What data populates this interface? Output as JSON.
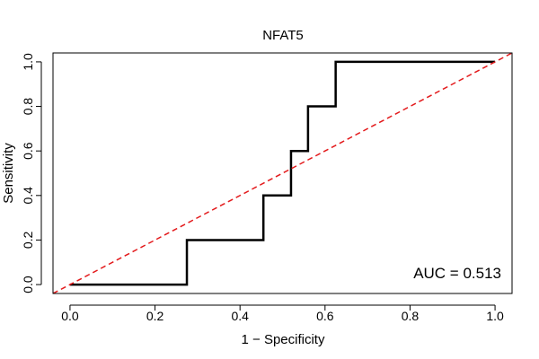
{
  "chart_data": {
    "type": "line",
    "title": "NFAT5",
    "xlabel": "1 − Specificity",
    "ylabel": "Sensitivity",
    "xlim": [
      -0.04,
      1.04
    ],
    "ylim": [
      -0.04,
      1.04
    ],
    "x_ticks": [
      0.0,
      0.2,
      0.4,
      0.6,
      0.8,
      1.0
    ],
    "x_tick_labels": [
      "0.0",
      "0.2",
      "0.4",
      "0.6",
      "0.8",
      "1.0"
    ],
    "y_ticks": [
      0.0,
      0.2,
      0.4,
      0.6,
      0.8,
      1.0
    ],
    "y_tick_labels": [
      "0.0",
      "0.2",
      "0.4",
      "0.6",
      "0.8",
      "1.0"
    ],
    "grid": false,
    "series": [
      {
        "style": "step",
        "color": "#000000",
        "points": [
          [
            0.0,
            0.0
          ],
          [
            0.275,
            0.0
          ],
          [
            0.275,
            0.2
          ],
          [
            0.455,
            0.2
          ],
          [
            0.455,
            0.4
          ],
          [
            0.52,
            0.4
          ],
          [
            0.52,
            0.6
          ],
          [
            0.56,
            0.6
          ],
          [
            0.56,
            0.8
          ],
          [
            0.625,
            0.8
          ],
          [
            0.625,
            1.0
          ],
          [
            1.0,
            1.0
          ]
        ]
      },
      {
        "style": "dashed-diagonal",
        "color": "#e31a1c",
        "points": [
          [
            -0.04,
            -0.04
          ],
          [
            1.04,
            1.04
          ]
        ]
      }
    ],
    "annotation": "AUC = 0.513"
  }
}
